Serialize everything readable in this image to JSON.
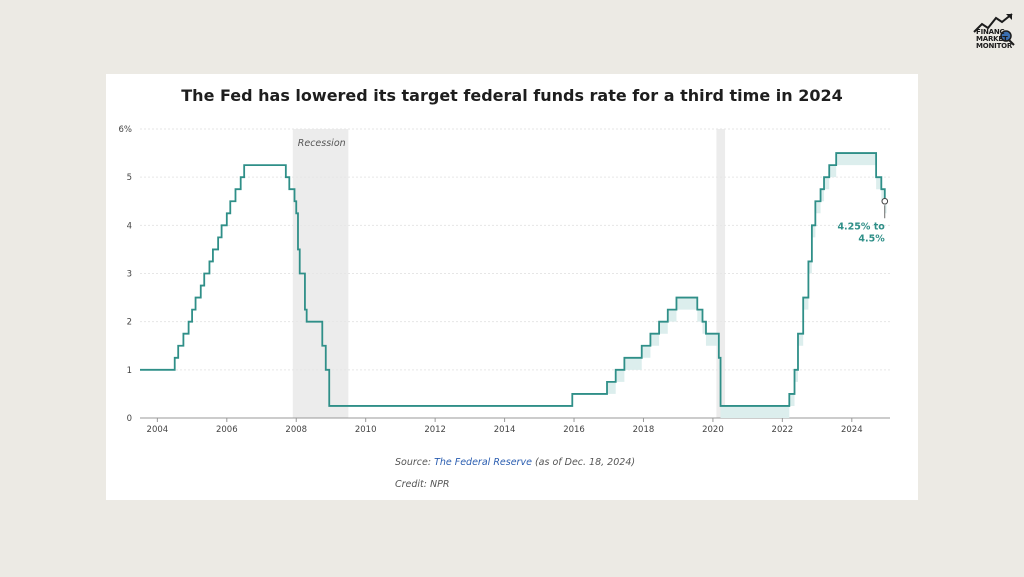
{
  "brand": {
    "logo_lines": [
      "FINANC",
      "MARKET",
      "MONITOR"
    ],
    "logo_icon": "trend-arrow-magnifier-icon"
  },
  "chart_data": {
    "type": "line",
    "title": "The Fed has lowered its target federal funds rate for a third time in 2024",
    "xlabel": "",
    "ylabel": "",
    "xlim": [
      2003.5,
      2025.1
    ],
    "ylim": [
      0,
      6
    ],
    "x_ticks": [
      2004,
      2006,
      2008,
      2010,
      2012,
      2014,
      2016,
      2018,
      2020,
      2022,
      2024
    ],
    "y_ticks": [
      0,
      1,
      2,
      3,
      4,
      5,
      6
    ],
    "y_tick_labels": [
      "0",
      "1",
      "2",
      "3",
      "4",
      "5",
      "6%"
    ],
    "grid": "horizontal",
    "recessions": [
      {
        "start": 2007.9,
        "end": 2009.5,
        "label": "Recession"
      },
      {
        "start": 2020.1,
        "end": 2020.35,
        "label": ""
      }
    ],
    "series": [
      {
        "name": "upper",
        "color": "#2f8f88",
        "points": [
          [
            2003.5,
            1.0
          ],
          [
            2004.5,
            1.25
          ],
          [
            2004.6,
            1.5
          ],
          [
            2004.75,
            1.75
          ],
          [
            2004.9,
            2.0
          ],
          [
            2005.0,
            2.25
          ],
          [
            2005.1,
            2.5
          ],
          [
            2005.25,
            2.75
          ],
          [
            2005.35,
            3.0
          ],
          [
            2005.5,
            3.25
          ],
          [
            2005.6,
            3.5
          ],
          [
            2005.75,
            3.75
          ],
          [
            2005.85,
            4.0
          ],
          [
            2006.0,
            4.25
          ],
          [
            2006.1,
            4.5
          ],
          [
            2006.25,
            4.75
          ],
          [
            2006.4,
            5.0
          ],
          [
            2006.5,
            5.25
          ],
          [
            2007.7,
            5.0
          ],
          [
            2007.8,
            4.75
          ],
          [
            2007.95,
            4.5
          ],
          [
            2008.0,
            4.25
          ],
          [
            2008.05,
            3.5
          ],
          [
            2008.1,
            3.0
          ],
          [
            2008.25,
            2.25
          ],
          [
            2008.3,
            2.0
          ],
          [
            2008.75,
            1.5
          ],
          [
            2008.85,
            1.0
          ],
          [
            2008.95,
            0.25
          ],
          [
            2015.95,
            0.5
          ],
          [
            2016.95,
            0.75
          ],
          [
            2017.2,
            1.0
          ],
          [
            2017.45,
            1.25
          ],
          [
            2017.95,
            1.5
          ],
          [
            2018.2,
            1.75
          ],
          [
            2018.45,
            2.0
          ],
          [
            2018.7,
            2.25
          ],
          [
            2018.95,
            2.5
          ],
          [
            2019.55,
            2.25
          ],
          [
            2019.7,
            2.0
          ],
          [
            2019.8,
            1.75
          ],
          [
            2020.17,
            1.25
          ],
          [
            2020.22,
            0.25
          ],
          [
            2022.2,
            0.5
          ],
          [
            2022.35,
            1.0
          ],
          [
            2022.45,
            1.75
          ],
          [
            2022.6,
            2.5
          ],
          [
            2022.75,
            3.25
          ],
          [
            2022.85,
            4.0
          ],
          [
            2022.95,
            4.5
          ],
          [
            2023.1,
            4.75
          ],
          [
            2023.2,
            5.0
          ],
          [
            2023.35,
            5.25
          ],
          [
            2023.55,
            5.5
          ],
          [
            2024.7,
            5.0
          ],
          [
            2024.85,
            4.75
          ],
          [
            2024.95,
            4.5
          ],
          [
            2025.0,
            4.5
          ]
        ]
      },
      {
        "name": "lower",
        "color": "#dceeed",
        "points": [
          [
            2015.95,
            0.25
          ],
          [
            2016.95,
            0.5
          ],
          [
            2017.2,
            0.75
          ],
          [
            2017.45,
            1.0
          ],
          [
            2017.95,
            1.25
          ],
          [
            2018.2,
            1.5
          ],
          [
            2018.45,
            1.75
          ],
          [
            2018.7,
            2.0
          ],
          [
            2018.95,
            2.25
          ],
          [
            2019.55,
            2.0
          ],
          [
            2019.7,
            1.75
          ],
          [
            2019.8,
            1.5
          ],
          [
            2020.17,
            1.0
          ],
          [
            2020.22,
            0.0
          ],
          [
            2022.2,
            0.25
          ],
          [
            2022.35,
            0.75
          ],
          [
            2022.45,
            1.5
          ],
          [
            2022.6,
            2.25
          ],
          [
            2022.75,
            3.0
          ],
          [
            2022.85,
            3.75
          ],
          [
            2022.95,
            4.25
          ],
          [
            2023.1,
            4.5
          ],
          [
            2023.2,
            4.75
          ],
          [
            2023.35,
            5.0
          ],
          [
            2023.55,
            5.25
          ],
          [
            2024.7,
            4.75
          ],
          [
            2024.85,
            4.5
          ],
          [
            2024.95,
            4.25
          ],
          [
            2025.0,
            4.25
          ]
        ]
      }
    ],
    "annotation": {
      "x": 2024.95,
      "y": 4.5,
      "line1": "4.25% to",
      "line2": "4.5%"
    }
  },
  "source": {
    "prefix": "Source: ",
    "link": "The Federal Reserve",
    "suffix": " (as of Dec. 18, 2024)"
  },
  "credit": "Credit: NPR"
}
